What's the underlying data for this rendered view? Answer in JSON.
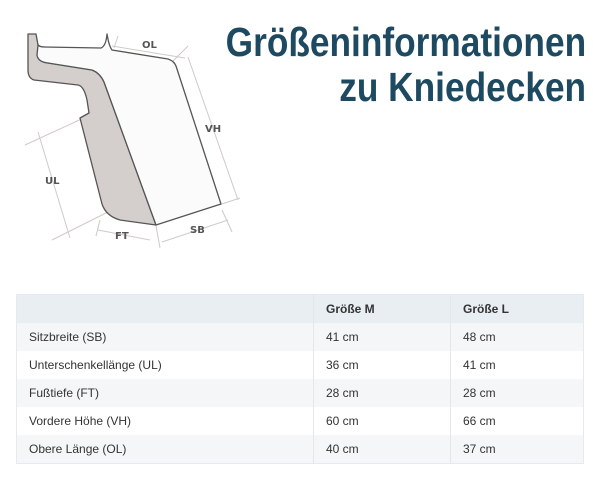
{
  "title": {
    "line1": "Größeninformationen",
    "line2": "zu Kniedecken"
  },
  "diagram": {
    "labels": {
      "ol": "OL",
      "vh": "VH",
      "ul": "UL",
      "ft": "FT",
      "sb": "SB"
    }
  },
  "table": {
    "headers": [
      "",
      "Größe M",
      "Größe L"
    ],
    "rows": [
      {
        "label": "Sitzbreite (SB)",
        "m": "41 cm",
        "l": "48 cm"
      },
      {
        "label": "Unterschenkellänge (UL)",
        "m": "36 cm",
        "l": "41 cm"
      },
      {
        "label": "Fußtiefe (FT)",
        "m": "28 cm",
        "l": "28 cm"
      },
      {
        "label": "Vordere Höhe (VH)",
        "m": "60 cm",
        "l": "66 cm"
      },
      {
        "label": "Obere Länge (OL)",
        "m": "40 cm",
        "l": "37 cm"
      }
    ]
  },
  "colors": {
    "title": "#1d4a60",
    "header_bg": "#e9eef3",
    "row_alt_bg": "#f5f6f8",
    "shape_fill": "#d4cfcc"
  }
}
